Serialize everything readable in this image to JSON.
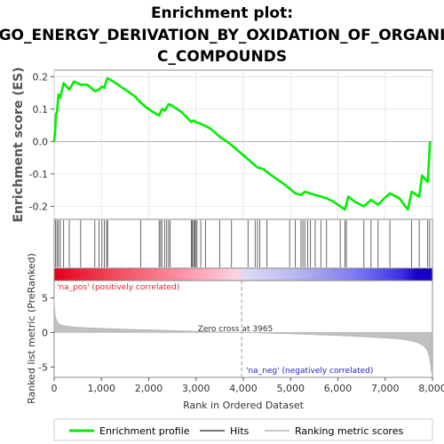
{
  "chart_data": {
    "type": "line",
    "title_line1": "Enrichment plot:",
    "title_line2": "GO_ENERGY_DERIVATION_BY_OXIDATION_OF_ORGANI",
    "title_line3": "C_COMPOUNDS",
    "es_ylabel": "Enrichment score (ES)",
    "metric_ylabel": "Ranked list metric (PreRanked)",
    "xlabel": "Rank in Ordered Dataset",
    "xlim": [
      0,
      8000
    ],
    "es_ylim": [
      -0.24,
      0.22
    ],
    "metric_ylim": [
      -6.5,
      7.5
    ],
    "x_ticks": [
      0,
      1000,
      2000,
      3000,
      4000,
      5000,
      6000,
      7000,
      8000
    ],
    "x_tick_labels": [
      "0",
      "1,000",
      "2,000",
      "3,000",
      "4,000",
      "5,000",
      "6,000",
      "7,000",
      "8,000"
    ],
    "es_ticks": [
      0.2,
      0.1,
      0.0,
      -0.1,
      -0.2
    ],
    "es_tick_labels": [
      "0.2",
      "0.1",
      "0.0",
      "-0.1",
      "-0.2"
    ],
    "metric_ticks": [
      5,
      0,
      -5
    ],
    "metric_tick_labels": [
      "5",
      "0",
      "-5"
    ],
    "zero_cross_label": "Zero cross at 3965",
    "zero_cross": 3965,
    "pos_label": "'na_pos' (positively correlated)",
    "neg_label": "'na_neg' (negatively correlated)",
    "series": [
      {
        "name": "Enrichment profile",
        "color": "#00ee00",
        "x": [
          0,
          20,
          40,
          60,
          90,
          130,
          200,
          320,
          420,
          560,
          700,
          860,
          950,
          1010,
          1060,
          1110,
          1130,
          1300,
          1500,
          1700,
          1830,
          1950,
          2100,
          2220,
          2280,
          2340,
          2420,
          2500,
          2700,
          2900,
          2950,
          2990,
          3100,
          3300,
          3500,
          3700,
          3900,
          4100,
          4300,
          4420,
          4600,
          4800,
          4980,
          5100,
          5220,
          5300,
          5420,
          5520,
          5640,
          5760,
          5900,
          6050,
          6150,
          6220,
          6350,
          6550,
          6700,
          6850,
          6980,
          7100,
          7300,
          7480,
          7560,
          7720,
          7780,
          7900,
          7950
        ],
        "y": [
          0.0,
          0.03,
          0.085,
          0.09,
          0.145,
          0.135,
          0.18,
          0.16,
          0.185,
          0.175,
          0.175,
          0.155,
          0.16,
          0.17,
          0.165,
          0.19,
          0.195,
          0.18,
          0.16,
          0.14,
          0.12,
          0.105,
          0.09,
          0.08,
          0.1,
          0.095,
          0.115,
          0.11,
          0.09,
          0.06,
          0.065,
          0.06,
          0.055,
          0.04,
          0.015,
          -0.005,
          -0.03,
          -0.055,
          -0.08,
          -0.085,
          -0.105,
          -0.125,
          -0.145,
          -0.16,
          -0.165,
          -0.155,
          -0.16,
          -0.165,
          -0.17,
          -0.175,
          -0.185,
          -0.2,
          -0.21,
          -0.17,
          -0.185,
          -0.2,
          -0.18,
          -0.195,
          -0.175,
          -0.16,
          -0.175,
          -0.21,
          -0.155,
          -0.17,
          -0.105,
          -0.125,
          0.0
        ]
      }
    ],
    "hits": [
      30,
      60,
      90,
      130,
      200,
      320,
      560,
      860,
      950,
      1010,
      1060,
      1110,
      1130,
      1830,
      2220,
      2250,
      2280,
      2340,
      2380,
      2420,
      2450,
      2900,
      2920,
      2950,
      2970,
      2990,
      3020,
      3100,
      3200,
      3500,
      3750,
      4100,
      4250,
      4300,
      4350,
      4500,
      4980,
      5100,
      5220,
      5260,
      5300,
      5360,
      5420,
      5520,
      5640,
      5760,
      6050,
      6150,
      6180,
      6550,
      6700,
      6850,
      7100,
      7560,
      7720,
      7900,
      7940
    ],
    "metric_profile": {
      "x": [
        0,
        10,
        30,
        60,
        100,
        150,
        200,
        300,
        500,
        800,
        1200,
        1600,
        2000,
        2500,
        3000,
        3500,
        3965,
        4500,
        5000,
        5500,
        6000,
        6500,
        7000,
        7300,
        7500,
        7650,
        7750,
        7820,
        7870,
        7910,
        7940,
        7960,
        7980
      ],
      "y": [
        5.2,
        3.2,
        2.2,
        1.6,
        1.3,
        1.1,
        1.0,
        0.9,
        0.75,
        0.65,
        0.55,
        0.45,
        0.38,
        0.28,
        0.18,
        0.08,
        0.0,
        -0.1,
        -0.2,
        -0.32,
        -0.45,
        -0.6,
        -0.8,
        -0.95,
        -1.15,
        -1.4,
        -1.7,
        -2.0,
        -2.4,
        -3.0,
        -3.8,
        -4.6,
        -5.8
      ]
    },
    "legend": [
      {
        "label": "Enrichment profile",
        "color": "#00ee00"
      },
      {
        "label": "Hits",
        "color": "#777777"
      },
      {
        "label": "Ranking metric scores",
        "color": "#c8c8c8"
      }
    ]
  }
}
